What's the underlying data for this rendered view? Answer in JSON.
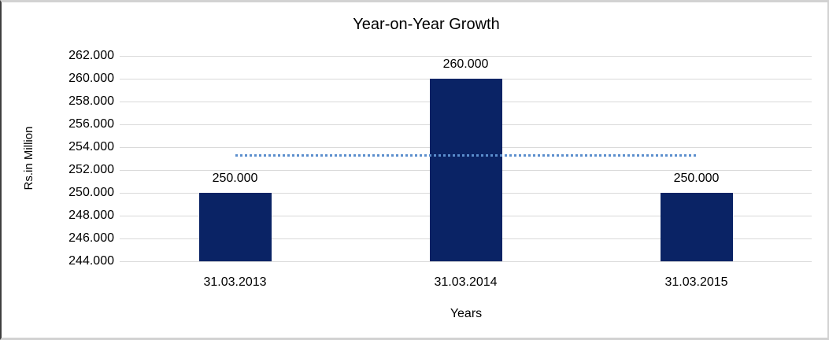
{
  "chart_data": {
    "type": "bar",
    "title": "Year-on-Year Growth",
    "xlabel": "Years",
    "ylabel": "Rs.in Million",
    "categories": [
      "31.03.2013",
      "31.03.2014",
      "31.03.2015"
    ],
    "values": [
      250000,
      260000,
      250000
    ],
    "value_labels": [
      "250.000",
      "260.000",
      "250.000"
    ],
    "ylim": [
      244000,
      262000
    ],
    "y_tick_values": [
      244000,
      246000,
      248000,
      250000,
      252000,
      254000,
      256000,
      258000,
      260000,
      262000
    ],
    "y_tick_labels": [
      "244.000",
      "246.000",
      "248.000",
      "250.000",
      "252.000",
      "254.000",
      "256.000",
      "258.000",
      "260.000",
      "262.000"
    ],
    "grid": true,
    "legend": false,
    "trendline": {
      "type": "linear",
      "value": 253333,
      "style": "dotted"
    },
    "colors": {
      "bar": "#0a2365",
      "trendline": "#5b8ecd",
      "gridline": "#d9d9d9",
      "text": "#000000",
      "background": "#ffffff",
      "frame_border": "#d2d2d2",
      "frame_border_left": "#3e3e3e"
    }
  }
}
